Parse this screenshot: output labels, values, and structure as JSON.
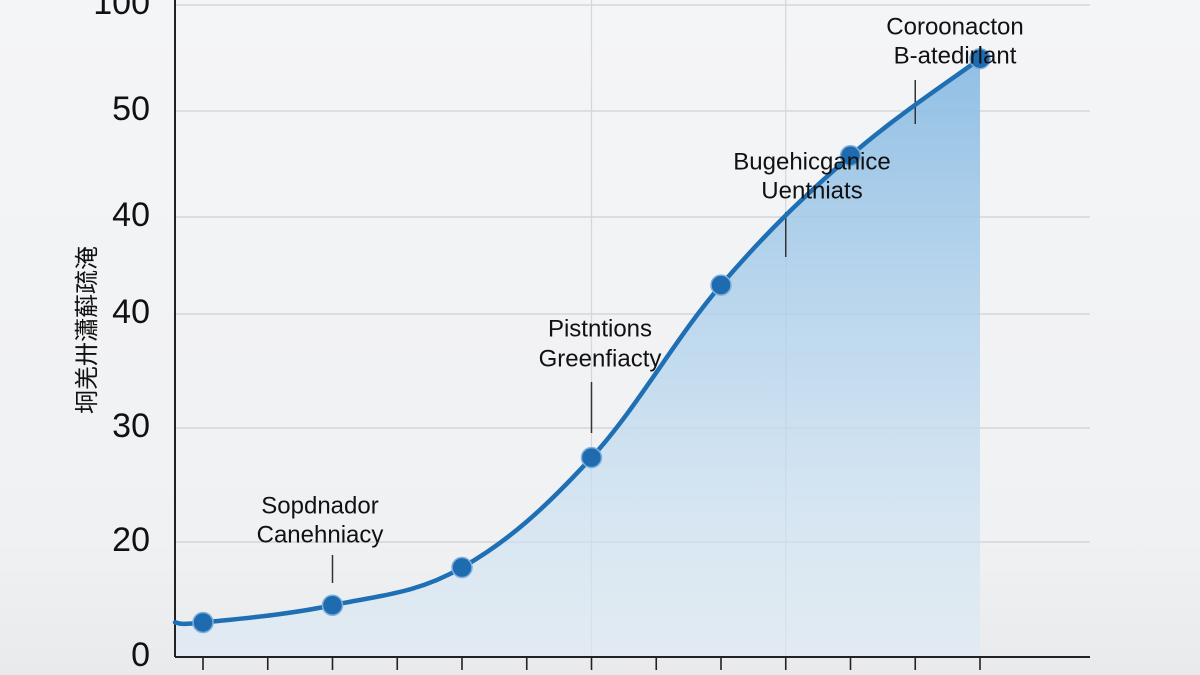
{
  "chart_data": {
    "type": "area",
    "title": "",
    "xlabel": "",
    "ylabel": "坰羌卅瀟蔛疏淹",
    "y_tick_labels": [
      "0",
      "20",
      "30",
      "40",
      "40",
      "50",
      "100"
    ],
    "x": [
      1,
      2,
      3,
      4,
      5,
      6,
      7
    ],
    "y": [
      3.2,
      4.8,
      8.3,
      18.5,
      34.5,
      46.5,
      55.5
    ],
    "annotations": [
      {
        "x": 2,
        "lines": [
          "Sopdnador",
          "Canehniacy"
        ]
      },
      {
        "x": 4,
        "lines": [
          "Pistntions",
          "Greenfiacty"
        ]
      },
      {
        "x": 5.5,
        "lines": [
          "Bugehicganice",
          "Uentniats"
        ]
      },
      {
        "x": 6.5,
        "lines": [
          "Coroonacton",
          "B-atedirlant"
        ]
      }
    ],
    "colors": {
      "line": "#1f6fb5",
      "marker": "#1f6bb0",
      "fill": "#a9cdea",
      "grid": "#d4d6da"
    },
    "grid": true,
    "legend": "none"
  }
}
